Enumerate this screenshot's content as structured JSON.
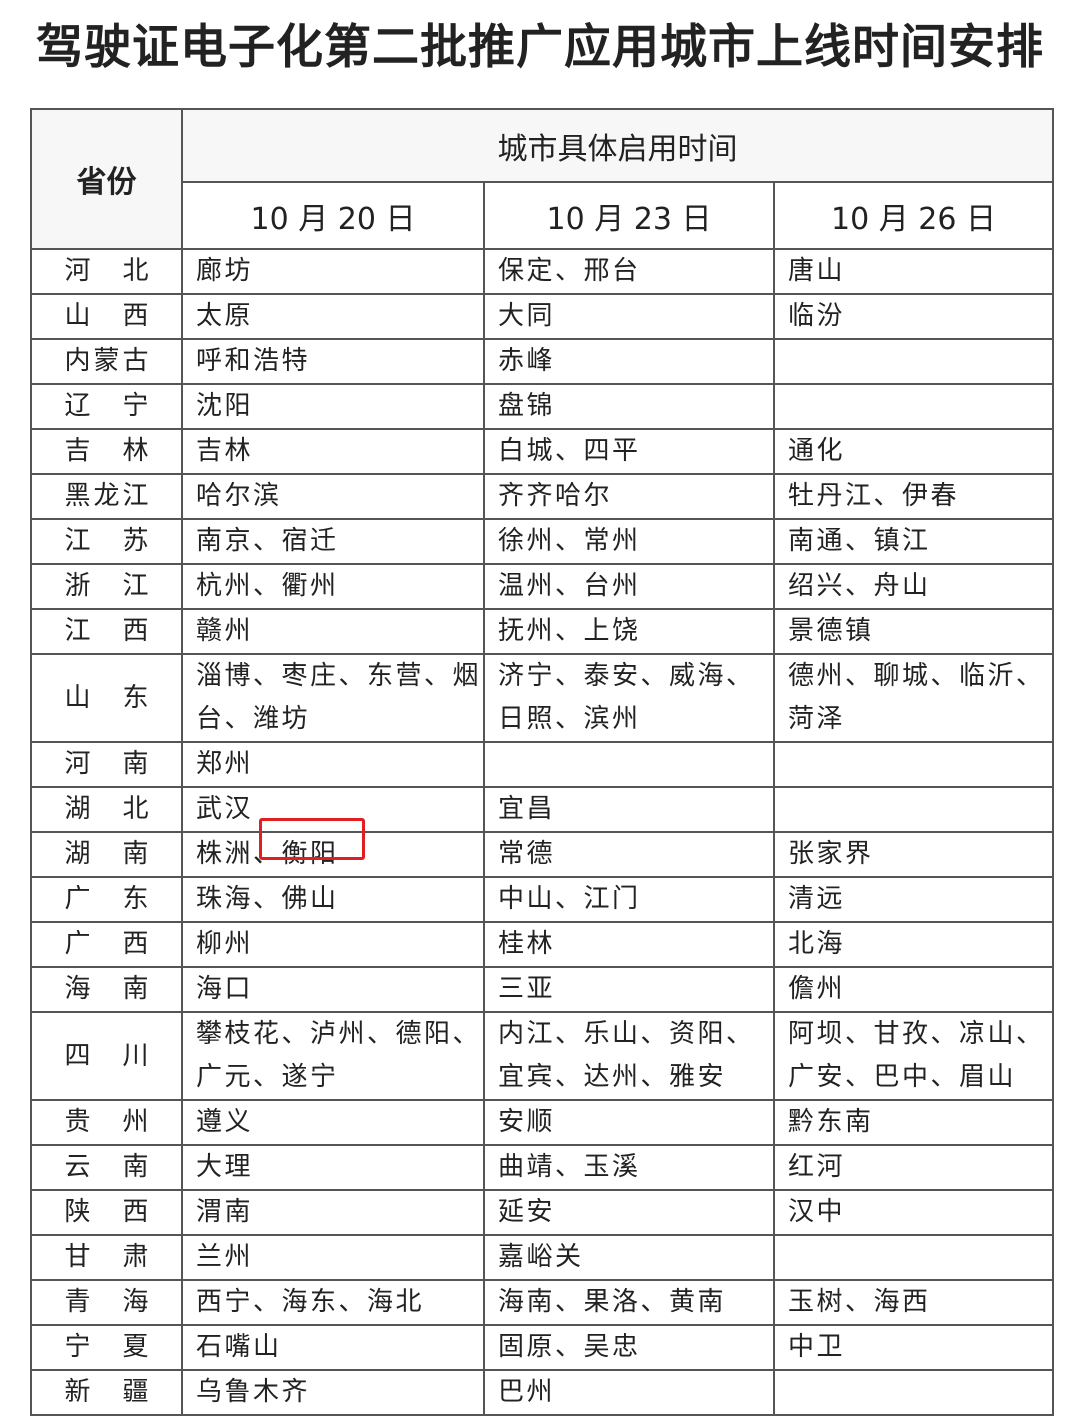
{
  "title": "驾驶证电子化第二批推广应用城市上线时间安排",
  "table": {
    "header": {
      "province": "省份",
      "group": "城市具体启用时间",
      "dates": [
        "10 月 20 日",
        "10 月 23 日",
        "10 月 26 日"
      ]
    },
    "rows": [
      [
        "河北",
        "廊坊",
        "保定、邢台",
        "唐山"
      ],
      [
        "山西",
        "太原",
        "大同",
        "临汾"
      ],
      [
        "内蒙古",
        "呼和浩特",
        "赤峰",
        null
      ],
      [
        "辽宁",
        "沈阳",
        "盘锦",
        null
      ],
      [
        "吉林",
        "吉林",
        "白城、四平",
        "通化"
      ],
      [
        "黑龙江",
        "哈尔滨",
        "齐齐哈尔",
        "牡丹江、伊春"
      ],
      [
        "江苏",
        "南京、宿迁",
        "徐州、常州",
        "南通、镇江"
      ],
      [
        "浙江",
        "杭州、衢州",
        "温州、台州",
        "绍兴、舟山"
      ],
      [
        "江西",
        "赣州",
        "抚州、上饶",
        "景德镇"
      ],
      [
        "山东",
        "淄博、枣庄、东营、烟台、潍坊",
        "济宁、泰安、威海、日照、滨州",
        "德州、聊城、临沂、菏泽"
      ],
      [
        "河南",
        "郑州",
        null,
        null
      ],
      [
        "湖北",
        "武汉",
        "宜昌",
        null
      ],
      [
        "湖南",
        "株洲、衡阳",
        "常德",
        "张家界"
      ],
      [
        "广东",
        "珠海、佛山",
        "中山、江门",
        "清远"
      ],
      [
        "广西",
        "柳州",
        "桂林",
        "北海"
      ],
      [
        "海南",
        "海口",
        "三亚",
        "儋州"
      ],
      [
        "四川",
        "攀枝花、泸州、德阳、广元、遂宁",
        "内江、乐山、资阳、宜宾、达州、雅安",
        "阿坝、甘孜、凉山、广安、巴中、眉山"
      ],
      [
        "贵州",
        "遵义",
        "安顺",
        "黔东南"
      ],
      [
        "云南",
        "大理",
        "曲靖、玉溪",
        "红河"
      ],
      [
        "陕西",
        "渭南",
        "延安",
        "汉中"
      ],
      [
        "甘肃",
        "兰州",
        "嘉峪关",
        null
      ],
      [
        "青海",
        "西宁、海东、海北",
        "海南、果洛、黄南",
        "玉树、海西"
      ],
      [
        "宁夏",
        "石嘴山",
        "固原、吴忠",
        "中卫"
      ],
      [
        "新疆",
        "乌鲁木齐",
        "巴州",
        null
      ]
    ]
  }
}
